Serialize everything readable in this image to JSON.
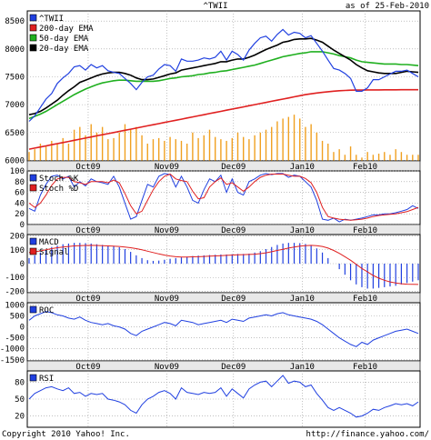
{
  "header": {
    "symbol": "^TWII",
    "date_text": "as of 25-Feb-2010"
  },
  "footer": {
    "copyright": "Copyright 2010 Yahoo! Inc.",
    "url": "http://finance.yahoo.com/"
  },
  "colors": {
    "price": "#2040e0",
    "ema200": "#e02020",
    "ema50": "#20b020",
    "ema20": "#000000",
    "volume": "#f0a020",
    "stochK": "#2040e0",
    "stochD": "#e02020",
    "macd": "#2040e0",
    "signal": "#e02020",
    "roc": "#2040e0",
    "rsi": "#2040e0",
    "grid": "#9a9a9a",
    "band": "#e8e8e8"
  },
  "chart_data": [
    {
      "type": "line",
      "x_ticks": [
        "Oct09",
        "Nov09",
        "Dec09",
        "Jan10",
        "Feb10"
      ],
      "y_ticks": [
        6000,
        6500,
        7000,
        7500,
        8000,
        8500
      ],
      "ylim": [
        5990,
        8520
      ],
      "legend": [
        {
          "key": "price",
          "label": "^TWII"
        },
        {
          "key": "ema200",
          "label": "200-day EMA"
        },
        {
          "key": "ema50",
          "label": "50-day EMA"
        },
        {
          "key": "ema20",
          "label": "20-day EMA"
        }
      ],
      "series": [
        {
          "name": "^TWII",
          "key": "price",
          "values": [
            6700,
            6800,
            6950,
            7100,
            7200,
            7380,
            7480,
            7560,
            7680,
            7700,
            7620,
            7720,
            7660,
            7700,
            7610,
            7580,
            7560,
            7470,
            7380,
            7270,
            7400,
            7500,
            7530,
            7640,
            7720,
            7700,
            7600,
            7820,
            7780,
            7780,
            7800,
            7840,
            7820,
            7850,
            7960,
            7800,
            7960,
            7900,
            7800,
            7980,
            8100,
            8200,
            8230,
            8140,
            8260,
            8350,
            8250,
            8300,
            8280,
            8200,
            8240,
            8100,
            7960,
            7800,
            7650,
            7620,
            7560,
            7470,
            7240,
            7240,
            7300,
            7450,
            7450,
            7500,
            7550,
            7600,
            7600,
            7620,
            7560,
            7500
          ]
        },
        {
          "name": "20-day EMA",
          "key": "ema20",
          "values": [
            6820,
            6840,
            6880,
            6940,
            7010,
            7080,
            7170,
            7250,
            7320,
            7400,
            7440,
            7480,
            7520,
            7550,
            7570,
            7580,
            7580,
            7560,
            7530,
            7480,
            7450,
            7450,
            7460,
            7490,
            7520,
            7550,
            7570,
            7620,
            7640,
            7660,
            7680,
            7700,
            7720,
            7740,
            7770,
            7770,
            7800,
            7820,
            7820,
            7850,
            7890,
            7940,
            7990,
            8030,
            8070,
            8120,
            8140,
            8170,
            8180,
            8180,
            8190,
            8160,
            8120,
            8050,
            7980,
            7920,
            7860,
            7800,
            7720,
            7660,
            7610,
            7590,
            7570,
            7560,
            7560,
            7560,
            7580,
            7600,
            7590,
            7580
          ]
        },
        {
          "name": "50-day EMA",
          "key": "ema50",
          "values": [
            6750,
            6790,
            6830,
            6880,
            6940,
            7000,
            7060,
            7120,
            7180,
            7230,
            7280,
            7320,
            7360,
            7390,
            7410,
            7430,
            7440,
            7440,
            7430,
            7420,
            7420,
            7420,
            7420,
            7430,
            7450,
            7470,
            7480,
            7500,
            7510,
            7520,
            7540,
            7550,
            7570,
            7580,
            7600,
            7610,
            7630,
            7650,
            7670,
            7690,
            7710,
            7740,
            7770,
            7800,
            7830,
            7860,
            7880,
            7900,
            7920,
            7930,
            7950,
            7950,
            7950,
            7930,
            7910,
            7880,
            7860,
            7840,
            7800,
            7770,
            7760,
            7750,
            7740,
            7730,
            7730,
            7730,
            7720,
            7720,
            7710,
            7700
          ]
        },
        {
          "name": "200-day EMA",
          "key": "ema200",
          "values": [
            6200,
            6220,
            6240,
            6260,
            6280,
            6300,
            6320,
            6340,
            6360,
            6380,
            6400,
            6420,
            6440,
            6460,
            6480,
            6500,
            6520,
            6540,
            6560,
            6580,
            6600,
            6620,
            6640,
            6660,
            6680,
            6700,
            6720,
            6740,
            6760,
            6780,
            6800,
            6820,
            6840,
            6860,
            6880,
            6900,
            6920,
            6940,
            6960,
            6980,
            7000,
            7020,
            7040,
            7060,
            7080,
            7100,
            7120,
            7140,
            7160,
            7180,
            7195,
            7210,
            7220,
            7232,
            7242,
            7250,
            7255,
            7260,
            7262,
            7262,
            7264,
            7265,
            7265,
            7266,
            7266,
            7267,
            7268,
            7268,
            7268,
            7268
          ]
        },
        {
          "name": "Volume",
          "key": "volume",
          "values": [
            6150,
            6200,
            6300,
            6250,
            6350,
            6300,
            6400,
            6300,
            6550,
            6600,
            6450,
            6650,
            6500,
            6600,
            6380,
            6400,
            6500,
            6650,
            6550,
            6600,
            6450,
            6300,
            6380,
            6400,
            6350,
            6420,
            6380,
            6350,
            6300,
            6500,
            6400,
            6450,
            6550,
            6420,
            6380,
            6350,
            6400,
            6500,
            6420,
            6380,
            6450,
            6500,
            6550,
            6600,
            6700,
            6750,
            6780,
            6820,
            6750,
            6600,
            6650,
            6500,
            6350,
            6300,
            6150,
            6200,
            6100,
            6250,
            6100,
            6050,
            6150,
            6100,
            6120,
            6150,
            6100,
            6200,
            6150,
            6100,
            6100,
            6100
          ]
        }
      ]
    },
    {
      "type": "line",
      "y_ticks": [
        0,
        20,
        40,
        60,
        80,
        100
      ],
      "ylim": [
        0,
        100
      ],
      "legend": [
        {
          "key": "stochK",
          "label": "Stoch %K"
        },
        {
          "key": "stochD",
          "label": "Stoch %D"
        }
      ],
      "series": [
        {
          "name": "Stoch %K",
          "key": "stochK",
          "values": [
            30,
            25,
            55,
            75,
            90,
            92,
            85,
            90,
            70,
            80,
            72,
            85,
            80,
            78,
            75,
            90,
            70,
            40,
            10,
            15,
            45,
            75,
            70,
            90,
            95,
            93,
            70,
            90,
            70,
            45,
            40,
            65,
            85,
            80,
            92,
            60,
            85,
            60,
            55,
            80,
            85,
            92,
            95,
            93,
            95,
            95,
            88,
            92,
            90,
            80,
            70,
            45,
            10,
            8,
            12,
            5,
            10,
            8,
            10,
            12,
            15,
            18,
            18,
            20,
            20,
            22,
            25,
            28,
            35,
            30
          ]
        },
        {
          "name": "Stoch %D",
          "key": "stochD",
          "values": [
            40,
            32,
            40,
            55,
            73,
            85,
            88,
            88,
            80,
            78,
            75,
            80,
            80,
            80,
            78,
            83,
            78,
            58,
            35,
            20,
            25,
            45,
            65,
            80,
            90,
            94,
            85,
            82,
            80,
            62,
            48,
            50,
            70,
            80,
            87,
            75,
            78,
            70,
            62,
            70,
            80,
            88,
            92,
            94,
            94,
            94,
            92,
            90,
            90,
            86,
            78,
            60,
            32,
            15,
            12,
            10,
            9,
            8,
            9,
            10,
            12,
            15,
            17,
            18,
            19,
            20,
            22,
            24,
            28,
            32
          ]
        }
      ]
    },
    {
      "type": "bar",
      "y_ticks": [
        -200,
        -100,
        0,
        100,
        200
      ],
      "ylim": [
        -210,
        210
      ],
      "legend": [
        {
          "key": "macd",
          "label": "MACD"
        },
        {
          "key": "signal",
          "label": "Signal"
        }
      ],
      "series": [
        {
          "name": "MACD",
          "key": "macd",
          "values": [
            40,
            60,
            80,
            100,
            120,
            130,
            140,
            145,
            150,
            150,
            148,
            145,
            140,
            135,
            130,
            125,
            118,
            105,
            85,
            60,
            40,
            25,
            20,
            22,
            28,
            35,
            40,
            45,
            50,
            55,
            58,
            60,
            62,
            64,
            66,
            66,
            68,
            70,
            70,
            72,
            80,
            90,
            105,
            120,
            135,
            145,
            150,
            150,
            148,
            142,
            130,
            110,
            80,
            40,
            0,
            -40,
            -80,
            -120,
            -150,
            -170,
            -180,
            -180,
            -175,
            -170,
            -165,
            -160,
            -150,
            -140,
            -130,
            -120
          ]
        },
        {
          "name": "Signal",
          "key": "signal",
          "values": [
            80,
            85,
            92,
            100,
            108,
            115,
            120,
            124,
            128,
            130,
            131,
            132,
            131,
            130,
            128,
            126,
            124,
            120,
            115,
            108,
            100,
            90,
            80,
            70,
            62,
            55,
            50,
            48,
            48,
            49,
            50,
            52,
            54,
            56,
            58,
            60,
            62,
            64,
            65,
            66,
            68,
            72,
            78,
            86,
            95,
            104,
            112,
            120,
            126,
            130,
            132,
            130,
            124,
            112,
            95,
            74,
            50,
            24,
            -5,
            -35,
            -60,
            -85,
            -105,
            -120,
            -132,
            -140,
            -145,
            -148,
            -149,
            -150
          ]
        }
      ]
    },
    {
      "type": "line",
      "y_ticks": [
        -1500,
        -1000,
        -500,
        0,
        500,
        1000
      ],
      "ylim": [
        -1550,
        1100
      ],
      "legend": [
        {
          "key": "roc",
          "label": "ROC"
        }
      ],
      "series": [
        {
          "name": "ROC",
          "key": "roc",
          "values": [
            300,
            500,
            600,
            700,
            650,
            550,
            500,
            400,
            350,
            450,
            300,
            200,
            150,
            100,
            150,
            50,
            0,
            -100,
            -300,
            -400,
            -200,
            -100,
            0,
            100,
            200,
            150,
            50,
            300,
            250,
            200,
            100,
            150,
            200,
            250,
            300,
            200,
            350,
            300,
            250,
            400,
            450,
            500,
            550,
            500,
            600,
            650,
            550,
            500,
            450,
            400,
            350,
            250,
            100,
            -100,
            -300,
            -500,
            -650,
            -800,
            -900,
            -700,
            -800,
            -600,
            -500,
            -400,
            -300,
            -200,
            -150,
            -100,
            -200,
            -300
          ]
        }
      ]
    },
    {
      "type": "line",
      "y_ticks": [
        20,
        50,
        80
      ],
      "ylim": [
        0,
        100
      ],
      "legend": [
        {
          "key": "rsi",
          "label": "RSI"
        }
      ],
      "series": [
        {
          "name": "RSI",
          "key": "rsi",
          "values": [
            50,
            60,
            65,
            70,
            72,
            68,
            65,
            70,
            60,
            62,
            55,
            60,
            58,
            60,
            50,
            48,
            45,
            40,
            30,
            25,
            40,
            50,
            55,
            62,
            65,
            60,
            50,
            70,
            62,
            60,
            58,
            62,
            60,
            62,
            70,
            55,
            68,
            60,
            52,
            68,
            75,
            80,
            82,
            72,
            82,
            92,
            78,
            82,
            80,
            72,
            75,
            60,
            48,
            35,
            30,
            35,
            30,
            25,
            18,
            20,
            25,
            32,
            30,
            35,
            38,
            42,
            40,
            42,
            38,
            45
          ]
        }
      ]
    }
  ]
}
